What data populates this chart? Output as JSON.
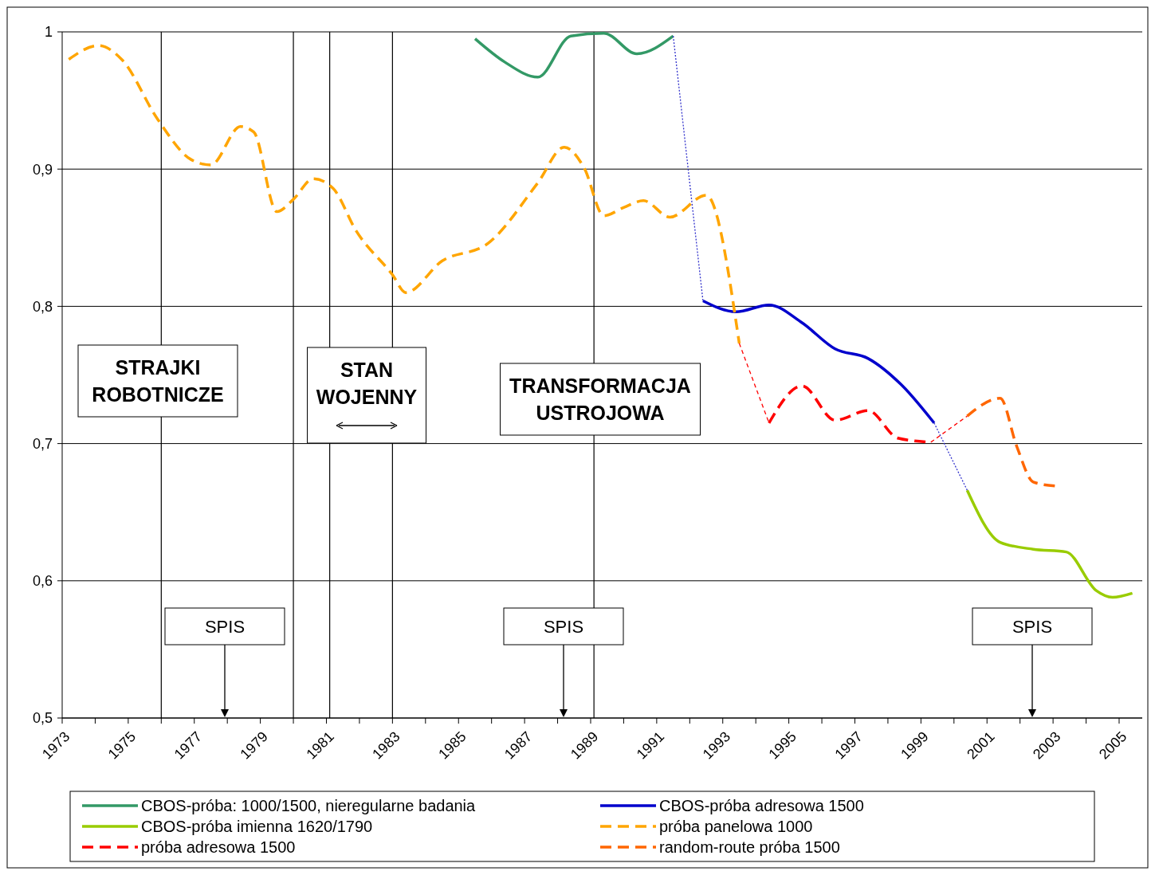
{
  "chart_data": {
    "type": "line",
    "xlim": [
      1973,
      2005.7
    ],
    "xticks": [
      1973,
      {
        "value": 1974,
        "label": null
      },
      1975,
      {
        "value": 1976,
        "label": null
      },
      1977,
      {
        "value": 1978,
        "label": null
      },
      1979,
      {
        "value": 1980,
        "label": null
      },
      1981,
      {
        "value": 1982,
        "label": null
      },
      1983,
      {
        "value": 1984,
        "label": null
      },
      1985,
      {
        "value": 1986,
        "label": null
      },
      1987,
      {
        "value": 1988,
        "label": null
      },
      1989,
      {
        "value": 1990,
        "label": null
      },
      1991,
      {
        "value": 1992,
        "label": null
      },
      1993,
      {
        "value": 1994,
        "label": null
      },
      1995,
      {
        "value": 1996,
        "label": null
      },
      1997,
      {
        "value": 1998,
        "label": null
      },
      1999,
      {
        "value": 2000,
        "label": null
      },
      2001,
      {
        "value": 2002,
        "label": null
      },
      2003,
      {
        "value": 2004,
        "label": null
      },
      2005
    ],
    "ylim": [
      0.5,
      1
    ],
    "yticks": [
      {
        "value": 0.5,
        "label": "0,5"
      },
      {
        "value": 0.6,
        "label": "0,6"
      },
      {
        "value": 0.7,
        "label": "0,7"
      },
      {
        "value": 0.8,
        "label": "0,8"
      },
      {
        "value": 0.9,
        "label": "0,9"
      },
      1
    ],
    "grid": "y",
    "legend": "bottom",
    "series": [
      {
        "name": "CBOS-próba: 1000/1500, nieregularne badania",
        "color": "#339966",
        "line_style": "solid",
        "x": [
          1985.5,
          1986.4,
          1987.4,
          1988.4,
          1989.4,
          1990.4,
          1991.5
        ],
        "values": [
          0.995,
          0.978,
          0.967,
          0.997,
          0.999,
          0.984,
          0.997
        ]
      },
      {
        "name": "CBOS-próba adresowa 1500",
        "color": "#0000cc",
        "line_style": "solid",
        "x": [
          1992.4,
          1993.4,
          1994.4,
          1995.4,
          1996.4,
          1997.4,
          1998.4,
          1999.4
        ],
        "values": [
          0.804,
          0.796,
          0.801,
          0.788,
          0.769,
          0.762,
          0.743,
          0.715
        ]
      },
      {
        "name": "CBOS-próba imienna 1620/1790",
        "color": "#99cc00",
        "line_style": "solid",
        "x": [
          2000.4,
          2001.4,
          2002.4,
          2003.4,
          2004.3,
          2004.8,
          2005.4
        ],
        "values": [
          0.666,
          0.628,
          0.623,
          0.621,
          0.593,
          0.588,
          0.591
        ]
      },
      {
        "name": "próba panelowa 1000",
        "color": "#ffa500",
        "line_style": "dashed",
        "x": [
          1973.2,
          1974.1,
          1974.8,
          1975.9,
          1976.9,
          1977.5,
          1978.4,
          1978.8,
          1979.5,
          1980.0,
          1980.6,
          1981.2,
          1981.9,
          1983.0,
          1983.4,
          1984.5,
          1985.9,
          1987.4,
          1988.2,
          1988.8,
          1989.4,
          1990.0,
          1990.6,
          1991.4,
          1992.5,
          1993.5
        ],
        "values": [
          0.98,
          0.99,
          0.98,
          0.936,
          0.907,
          0.903,
          0.931,
          0.927,
          0.869,
          0.878,
          0.893,
          0.886,
          0.855,
          0.823,
          0.81,
          0.833,
          0.846,
          0.89,
          0.916,
          0.901,
          0.866,
          0.872,
          0.877,
          0.865,
          0.881,
          0.773
        ]
      },
      {
        "name": "próba adresowa 1500",
        "color": "#ff0000",
        "line_style": "dashed",
        "x": [
          1994.4,
          1995.4,
          1996.4,
          1997.4,
          1998.3,
          1999.3
        ],
        "values": [
          0.715,
          0.742,
          0.717,
          0.724,
          0.704,
          0.701
        ]
      },
      {
        "name": "random-route próba 1500",
        "color": "#ff6600",
        "line_style": "dashed",
        "x": [
          2000.4,
          2001.4,
          2001.9,
          2002.4,
          2003.1
        ],
        "values": [
          0.72,
          0.733,
          0.698,
          0.672,
          0.669
        ]
      },
      {
        "color": "#3333cc",
        "line_style": "dotted",
        "x": [
          1991.5,
          1992.4
        ],
        "values": [
          0.997,
          0.804
        ]
      },
      {
        "color": "#3333cc",
        "line_style": "dotted",
        "x": [
          1999.4,
          2000.4
        ],
        "values": [
          0.715,
          0.666
        ]
      },
      {
        "color": "#ff0000",
        "line_style": "dashed",
        "x": [
          1993.5,
          1994.4
        ],
        "values": [
          0.773,
          0.715
        ]
      },
      {
        "color": "#ff0000",
        "line_style": "dashed",
        "x": [
          1999.3,
          2000.4
        ],
        "values": [
          0.701,
          0.72
        ]
      }
    ],
    "ref_lines": [
      {
        "axis": "x",
        "value": 1976
      },
      {
        "axis": "x",
        "value": 1980
      },
      {
        "axis": "x",
        "value": 1981.1
      },
      {
        "axis": "x",
        "value": 1983
      },
      {
        "axis": "x",
        "value": 1989.1
      }
    ],
    "annotations": [
      "STRAJKI ROBOTNICZE",
      "STAN WOJENNY",
      "TRANSFORMACJA USTROJOWA",
      "SPIS",
      "SPIS",
      "SPIS"
    ]
  }
}
